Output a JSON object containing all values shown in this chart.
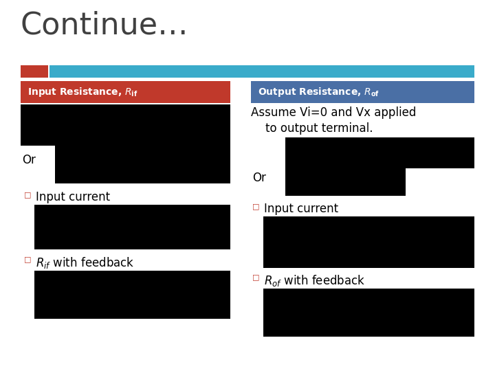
{
  "title": "Continue…",
  "title_fontsize": 32,
  "title_color": "#404040",
  "bg_color": "#ffffff",
  "stripe_red_color": "#c0392b",
  "stripe_teal_color": "#3aabca",
  "left_header_bg": "#c0392b",
  "left_header_text_color": "#ffffff",
  "right_header_bg": "#4a6fa5",
  "right_header_text_color": "#ffffff",
  "bullet_color": "#c0392b",
  "black": "#000000",
  "text_color": "#000000",
  "assume_text_line1": "Assume Vi=0 and Vx applied",
  "assume_text_line2": "    to output terminal.",
  "input_current_text": "Input current",
  "rif_text": "with feedback",
  "rof_text": "with feedback",
  "or_text": "Or"
}
